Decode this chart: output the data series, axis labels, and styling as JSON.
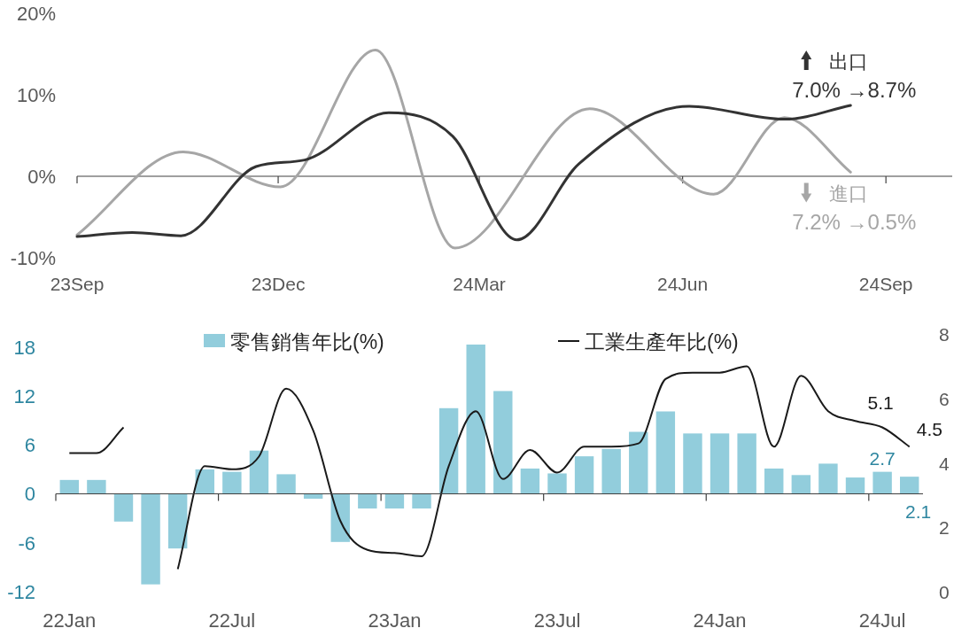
{
  "chart_data": [
    {
      "type": "line",
      "legend": "right",
      "xlim": [
        "2023-09-01",
        "2024-10-01"
      ],
      "ylim": [
        -10,
        20
      ],
      "xticks": [
        {
          "value": "2023-09-01",
          "label": "23Sep"
        },
        {
          "value": "2023-12-01",
          "label": "23Dec"
        },
        {
          "value": "2024-03-01",
          "label": "24Mar"
        },
        {
          "value": "2024-06-01",
          "label": "24Jun"
        },
        {
          "value": "2024-09-01",
          "label": "24Sep"
        }
      ],
      "yticks": [
        {
          "value": 20,
          "label": "20%"
        },
        {
          "value": 10,
          "label": "10%"
        },
        {
          "value": 0,
          "label": "0%"
        },
        {
          "value": -10,
          "label": "-10%"
        }
      ],
      "series": [
        {
          "name": "出口",
          "color": "#333333",
          "x": [
            "2023-09-01",
            "2023-09-26",
            "2023-10-18",
            "2023-11-21",
            "2023-12-13",
            "2024-01-20",
            "2024-02-18",
            "2024-03-18",
            "2024-04-15",
            "2024-06-04",
            "2024-07-17",
            "2024-08-16"
          ],
          "values": [
            -7.4,
            -6.9,
            -7.3,
            1.2,
            2.0,
            7.8,
            4.9,
            -7.8,
            1.5,
            8.6,
            7.0,
            8.7
          ]
        },
        {
          "name": "進口",
          "color": "#a6a6a6",
          "x": [
            "2023-09-01",
            "2023-10-19",
            "2023-12-02",
            "2024-01-14",
            "2024-02-19",
            "2024-04-20",
            "2024-06-15",
            "2024-07-17",
            "2024-08-16"
          ],
          "values": [
            -7.2,
            3.0,
            -1.3,
            15.5,
            -8.8,
            8.3,
            -2.2,
            7.2,
            0.5
          ]
        }
      ],
      "annotations": [
        "7.0% →8.7%",
        "7.2% →0.5%"
      ]
    },
    {
      "type": "bar",
      "legend": "top",
      "categories": [
        "22Jan",
        null,
        null,
        null,
        null,
        null,
        "22Jul",
        null,
        null,
        null,
        null,
        null,
        "23Jan",
        null,
        null,
        null,
        null,
        null,
        "23Jul",
        null,
        null,
        null,
        null,
        null,
        "24Jan",
        null,
        null,
        null,
        null,
        null,
        "24Jul",
        null
      ],
      "ylim": [
        -12,
        19.6
      ],
      "yticks": [
        -12,
        -6,
        0,
        6,
        12,
        18
      ],
      "y2lim": [
        0,
        8
      ],
      "y2ticks": [
        0,
        2,
        4,
        6,
        8
      ],
      "series": [
        {
          "name": "零售銷售年比(%)",
          "type": "bar",
          "color": "#92cddc",
          "values": [
            1.7,
            1.7,
            -3.4,
            -11.1,
            -6.7,
            3.0,
            2.7,
            5.3,
            2.4,
            -0.6,
            -5.9,
            -1.8,
            -1.8,
            -1.8,
            10.5,
            18.3,
            12.6,
            3.1,
            2.5,
            4.6,
            5.5,
            7.6,
            10.1,
            7.4,
            7.4,
            7.4,
            3.1,
            2.3,
            3.7,
            2.0,
            2.7,
            2.1
          ],
          "value_labels": [
            null,
            null,
            null,
            null,
            null,
            null,
            null,
            null,
            null,
            null,
            null,
            null,
            null,
            null,
            null,
            null,
            null,
            null,
            null,
            null,
            null,
            null,
            null,
            null,
            null,
            null,
            null,
            null,
            null,
            null,
            "2.7",
            "2.1"
          ]
        },
        {
          "name": "工業生產年比(%)",
          "type": "line",
          "axis": "y2",
          "color": "#1a1a1a",
          "values": [
            4.3,
            4.3,
            5.1,
            null,
            0.7,
            3.9,
            3.8,
            4.2,
            6.3,
            5.0,
            2.2,
            1.3,
            1.2,
            1.1,
            3.9,
            5.6,
            3.5,
            4.4,
            3.7,
            4.5,
            4.5,
            4.6,
            6.6,
            6.8,
            6.8,
            7.0,
            4.5,
            6.7,
            5.6,
            5.3,
            5.1,
            4.5
          ],
          "value_labels": [
            null,
            null,
            null,
            null,
            null,
            null,
            null,
            null,
            null,
            null,
            null,
            null,
            null,
            null,
            null,
            null,
            null,
            null,
            null,
            null,
            null,
            null,
            null,
            null,
            null,
            null,
            null,
            null,
            null,
            null,
            "5.1",
            "4.5"
          ]
        }
      ]
    }
  ]
}
